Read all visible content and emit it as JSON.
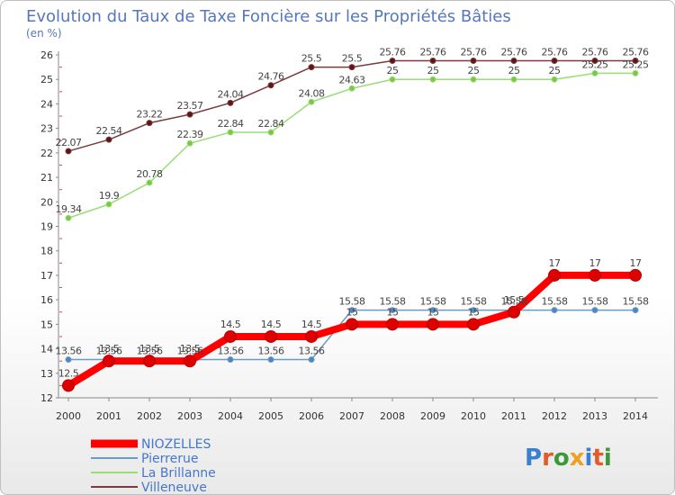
{
  "chart_data": {
    "type": "line",
    "title": "Evolution du Taux de Taxe Foncière sur les Propriétés Bâties",
    "subtitle": "(en %)",
    "xlabel": "",
    "ylabel": "",
    "x": [
      "2000",
      "2001",
      "2002",
      "2003",
      "2004",
      "2005",
      "2006",
      "2007",
      "2008",
      "2009",
      "2010",
      "2011",
      "2012",
      "2013",
      "2014"
    ],
    "ylim": [
      12,
      26
    ],
    "yticks": [
      "12",
      "13",
      "14",
      "15",
      "16",
      "17",
      "18",
      "19",
      "20",
      "21",
      "22",
      "23",
      "24",
      "25",
      "26"
    ],
    "legend_position": "bottom-left",
    "series": [
      {
        "name": "NIOZELLES",
        "color": "#ff0000",
        "marker_color": "#dd0000",
        "values": [
          12.5,
          13.5,
          13.5,
          13.5,
          14.5,
          14.5,
          14.5,
          15,
          15,
          15,
          15,
          15.5,
          17,
          17,
          17
        ],
        "labels": [
          "12.5",
          "13.5",
          "13.5",
          "13.5",
          "14.5",
          "14.5",
          "14.5",
          "15",
          "15",
          "15",
          "15",
          "15.5",
          "17",
          "17",
          "17"
        ]
      },
      {
        "name": "Pierrerue",
        "color": "#6b9cc4",
        "marker_color": "#4f86c1",
        "values": [
          13.56,
          13.56,
          13.56,
          13.56,
          13.56,
          13.56,
          13.56,
          15.58,
          15.58,
          15.58,
          15.58,
          15.58,
          15.58,
          15.58,
          15.58
        ],
        "labels": [
          "13.56",
          "13.56",
          "13.56",
          "13.56",
          "13.56",
          "13.56",
          "13.56",
          "15.58",
          "15.58",
          "15.58",
          "15.58",
          "15.58",
          "15.58",
          "15.58",
          "15.58"
        ]
      },
      {
        "name": "La Brillanne",
        "color": "#99dd77",
        "marker_color": "#7cc644",
        "values": [
          19.34,
          19.9,
          20.78,
          22.39,
          22.84,
          22.84,
          24.08,
          24.63,
          25,
          25,
          25,
          25,
          25,
          25.25,
          25.25
        ],
        "labels": [
          "19.34",
          "19.9",
          "20.78",
          "22.39",
          "22.84",
          "22.84",
          "24.08",
          "24.63",
          "25",
          "25",
          "25",
          "25",
          "25",
          "25.25",
          "25.25"
        ]
      },
      {
        "name": "Villeneuve",
        "color": "#7a3b3b",
        "marker_color": "#5e1515",
        "values": [
          22.07,
          22.54,
          23.22,
          23.57,
          24.04,
          24.76,
          25.5,
          25.5,
          25.76,
          25.76,
          25.76,
          25.76,
          25.76,
          25.76,
          25.76
        ],
        "labels": [
          "22.07",
          "22.54",
          "23.22",
          "23.57",
          "24.04",
          "24.76",
          "25.5",
          "25.5",
          "25.76",
          "25.76",
          "25.76",
          "25.76",
          "25.76",
          "25.76",
          "25.76"
        ]
      }
    ],
    "colors": {
      "title": "#5577bb",
      "legend_text": "#4477cc",
      "axis": "#888888",
      "grid_marks": "#dd4444"
    }
  },
  "watermark": {
    "text": "Proxiti"
  }
}
